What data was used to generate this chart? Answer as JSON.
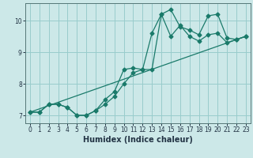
{
  "xlabel": "Humidex (Indice chaleur)",
  "bg_color": "#cce8e8",
  "grid_color": "#99cccc",
  "line_color": "#1a7a6a",
  "xlim": [
    -0.5,
    23.5
  ],
  "ylim": [
    6.75,
    10.55
  ],
  "xticks": [
    0,
    1,
    2,
    3,
    4,
    5,
    6,
    7,
    8,
    9,
    10,
    11,
    12,
    13,
    14,
    15,
    16,
    17,
    18,
    19,
    20,
    21,
    22,
    23
  ],
  "yticks": [
    7,
    8,
    9,
    10
  ],
  "line1_x": [
    0,
    1,
    2,
    3,
    4,
    5,
    6,
    7,
    8,
    9,
    10,
    11,
    12,
    13,
    14,
    15,
    16,
    17,
    18,
    19,
    20,
    21,
    22,
    23
  ],
  "line1_y": [
    7.1,
    7.1,
    7.35,
    7.35,
    7.25,
    7.0,
    7.0,
    7.15,
    7.5,
    7.75,
    8.45,
    8.5,
    8.45,
    9.6,
    10.2,
    10.35,
    9.8,
    9.7,
    9.55,
    10.15,
    10.2,
    9.45,
    9.4,
    9.5
  ],
  "line2_x": [
    0,
    1,
    2,
    3,
    4,
    5,
    6,
    7,
    8,
    9,
    10,
    11,
    12,
    13,
    14,
    15,
    16,
    17,
    18,
    19,
    20,
    21,
    22,
    23
  ],
  "line2_y": [
    7.1,
    7.1,
    7.35,
    7.35,
    7.25,
    7.0,
    7.0,
    7.15,
    7.35,
    7.6,
    8.0,
    8.35,
    8.45,
    8.45,
    10.2,
    9.5,
    9.85,
    9.5,
    9.35,
    9.55,
    9.6,
    9.3,
    9.4,
    9.5
  ],
  "line3_x": [
    0,
    23
  ],
  "line3_y": [
    7.1,
    9.5
  ],
  "tick_fontsize": 5.5,
  "xlabel_fontsize": 7
}
